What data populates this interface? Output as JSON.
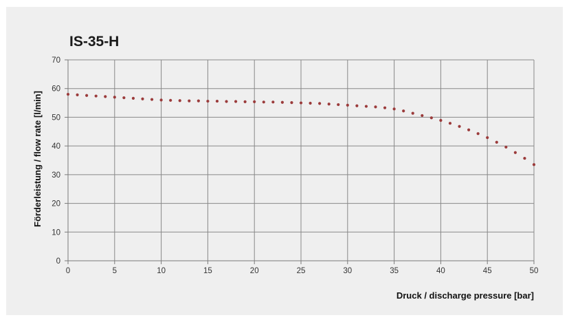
{
  "chart_data": {
    "type": "scatter",
    "title": "IS-35-H",
    "xlabel": "Druck / discharge pressure [bar]",
    "ylabel": "Förderleistung / flow rate [l/min]",
    "xlim": [
      0,
      50
    ],
    "ylim": [
      0,
      70
    ],
    "xticks": [
      0,
      5,
      10,
      15,
      20,
      25,
      30,
      35,
      40,
      45,
      50
    ],
    "yticks": [
      0,
      10,
      20,
      30,
      40,
      50,
      60,
      70
    ],
    "grid": true,
    "legend": "none",
    "series": [
      {
        "x": [
          0,
          1,
          2,
          3,
          4,
          5,
          6,
          7,
          8,
          9,
          10,
          11,
          12,
          13,
          14,
          15,
          16,
          17,
          18,
          19,
          20,
          21,
          22,
          23,
          24,
          25,
          26,
          27,
          28,
          29,
          30,
          31,
          32,
          33,
          34,
          35,
          36,
          37,
          38,
          39,
          40,
          41,
          42,
          43,
          44,
          45,
          46,
          47,
          48,
          49,
          50
        ],
        "y": [
          58.0,
          57.8,
          57.6,
          57.4,
          57.2,
          57.0,
          56.8,
          56.6,
          56.4,
          56.2,
          56.0,
          55.9,
          55.8,
          55.7,
          55.7,
          55.6,
          55.6,
          55.5,
          55.5,
          55.4,
          55.4,
          55.3,
          55.3,
          55.2,
          55.1,
          55.0,
          54.9,
          54.8,
          54.6,
          54.4,
          54.2,
          54.0,
          53.8,
          53.6,
          53.3,
          52.9,
          52.2,
          51.4,
          50.6,
          49.8,
          48.9,
          47.9,
          46.8,
          45.6,
          44.3,
          42.9,
          41.3,
          39.6,
          37.7,
          35.7,
          33.5
        ]
      }
    ],
    "colors": {
      "marker": "#9b3b3b",
      "grid": "#888888",
      "plot_background": "#efefef"
    }
  }
}
